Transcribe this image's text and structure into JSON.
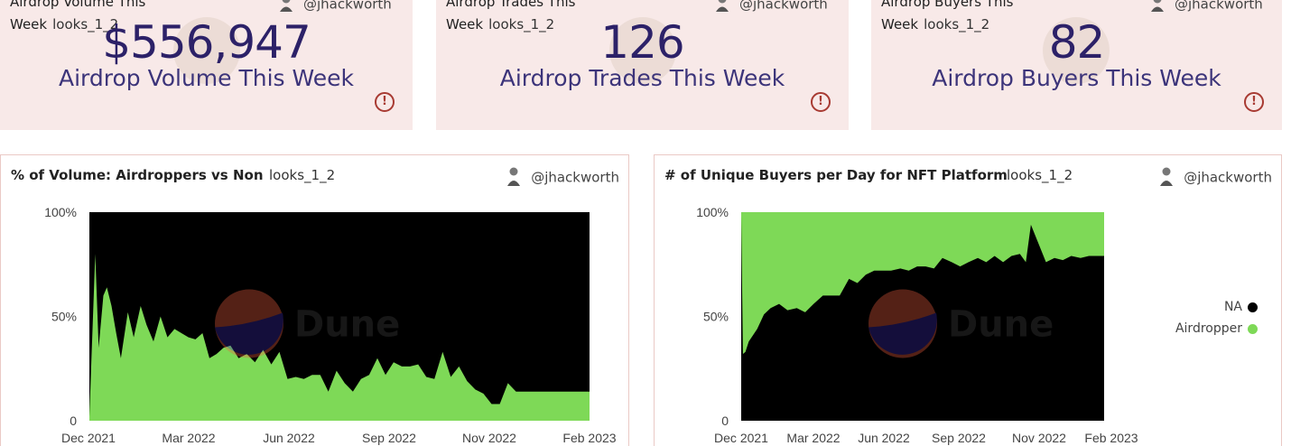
{
  "counters": [
    {
      "title": "Airdrop Volume This",
      "week": "Week",
      "query": "looks_1_2",
      "author": "@jhackworth",
      "value": "$556,947",
      "label": "Airdrop Volume This Week"
    },
    {
      "title": "Airdrop Trades This",
      "week": "Week",
      "query": "looks_1_2",
      "author": "@jhackworth",
      "value": "126",
      "label": "Airdrop Trades This Week"
    },
    {
      "title": "Airdrop Buyers This",
      "week": "Week",
      "query": "looks_1_2",
      "author": "@jhackworth",
      "value": "82",
      "label": "Airdrop Buyers This Week"
    }
  ],
  "panels": [
    {
      "title": "% of Volume: Airdroppers vs Non",
      "query": "looks_1_2",
      "author": "@jhackworth",
      "watermark": "Dune"
    },
    {
      "title": "# of Unique Buyers per Day for NFT Platform",
      "query": "looks_1_2",
      "author": "@jhackworth",
      "watermark": "Dune",
      "legend": [
        {
          "label": "NA",
          "color": "#000000"
        },
        {
          "label": "Airdropper",
          "color": "#7ed957"
        }
      ]
    }
  ],
  "chart_data": [
    {
      "type": "area",
      "stacked": true,
      "normalized": true,
      "title": "% of Volume: Airdroppers vs Non",
      "y_ticks": [
        "100%",
        "50%",
        "0"
      ],
      "x_ticks": [
        "Dec 2021",
        "Mar 2022",
        "Jun 2022",
        "Sep 2022",
        "Nov 2022",
        "Feb 2023"
      ],
      "x": [
        "2021-12-01",
        "2021-12-06",
        "2021-12-09",
        "2021-12-13",
        "2021-12-16",
        "2021-12-20",
        "2021-12-24",
        "2021-12-28",
        "2022-01-03",
        "2022-01-08",
        "2022-01-14",
        "2022-01-19",
        "2022-01-25",
        "2022-01-31",
        "2022-02-06",
        "2022-02-12",
        "2022-02-18",
        "2022-02-24",
        "2022-03-02",
        "2022-03-08",
        "2022-03-14",
        "2022-03-20",
        "2022-03-26",
        "2022-04-01",
        "2022-04-08",
        "2022-04-15",
        "2022-04-22",
        "2022-04-29",
        "2022-05-06",
        "2022-05-13",
        "2022-05-20",
        "2022-05-27",
        "2022-06-03",
        "2022-06-10",
        "2022-06-17",
        "2022-06-24",
        "2022-07-01",
        "2022-07-08",
        "2022-07-15",
        "2022-07-22",
        "2022-07-29",
        "2022-08-05",
        "2022-08-12",
        "2022-08-19",
        "2022-08-26",
        "2022-09-02",
        "2022-09-09",
        "2022-09-16",
        "2022-09-23",
        "2022-09-30",
        "2022-10-07",
        "2022-10-14",
        "2022-10-21",
        "2022-10-28",
        "2022-11-04",
        "2022-11-11",
        "2022-11-18",
        "2022-11-25",
        "2022-12-02",
        "2022-12-09",
        "2022-12-16",
        "2022-12-23",
        "2022-12-30",
        "2023-01-06",
        "2023-01-13",
        "2023-01-20",
        "2023-01-27",
        "2023-02-03"
      ],
      "series": [
        {
          "name": "Airdropper",
          "color": "#7ed957",
          "values": [
            0.02,
            0.8,
            0.35,
            0.6,
            0.64,
            0.55,
            0.42,
            0.3,
            0.52,
            0.4,
            0.55,
            0.46,
            0.38,
            0.5,
            0.4,
            0.44,
            0.42,
            0.4,
            0.39,
            0.42,
            0.3,
            0.32,
            0.35,
            0.36,
            0.3,
            0.32,
            0.28,
            0.34,
            0.27,
            0.33,
            0.2,
            0.21,
            0.2,
            0.22,
            0.22,
            0.14,
            0.24,
            0.18,
            0.14,
            0.2,
            0.22,
            0.3,
            0.22,
            0.28,
            0.26,
            0.26,
            0.27,
            0.21,
            0.2,
            0.33,
            0.21,
            0.26,
            0.19,
            0.15,
            0.13,
            0.08,
            0.08,
            0.18,
            0.14,
            0.14,
            0.14,
            0.14,
            0.14,
            0.14,
            0.14,
            0.14,
            0.14,
            0.14
          ]
        },
        {
          "name": "NA",
          "color": "#000000",
          "values": "remainder to 100%"
        }
      ],
      "ylim": [
        0,
        1
      ]
    },
    {
      "type": "area",
      "stacked": true,
      "normalized": true,
      "title": "# of Unique Buyers per Day for NFT Platform",
      "y_ticks": [
        "100%",
        "50%",
        "0"
      ],
      "x_ticks": [
        "Dec 2021",
        "Mar 2022",
        "Jun 2022",
        "Sep 2022",
        "Nov 2022",
        "Feb 2023"
      ],
      "x": [
        "2021-12-01",
        "2021-12-03",
        "2021-12-06",
        "2021-12-10",
        "2021-12-15",
        "2021-12-20",
        "2021-12-28",
        "2022-01-05",
        "2022-01-15",
        "2022-01-25",
        "2022-02-05",
        "2022-02-15",
        "2022-02-25",
        "2022-03-08",
        "2022-03-18",
        "2022-03-28",
        "2022-04-08",
        "2022-04-18",
        "2022-04-28",
        "2022-05-08",
        "2022-05-18",
        "2022-05-28",
        "2022-06-08",
        "2022-06-18",
        "2022-06-28",
        "2022-07-08",
        "2022-07-18",
        "2022-07-28",
        "2022-08-08",
        "2022-08-18",
        "2022-08-28",
        "2022-09-08",
        "2022-09-18",
        "2022-09-28",
        "2022-10-08",
        "2022-10-18",
        "2022-10-28",
        "2022-11-04",
        "2022-11-10",
        "2022-11-18",
        "2022-11-28",
        "2022-12-08",
        "2022-12-18",
        "2022-12-28",
        "2023-01-08",
        "2023-01-18",
        "2023-01-28",
        "2023-02-05"
      ],
      "series": [
        {
          "name": "NA",
          "color": "#000000",
          "values": [
            0.98,
            0.32,
            0.33,
            0.38,
            0.41,
            0.44,
            0.51,
            0.54,
            0.56,
            0.53,
            0.54,
            0.52,
            0.56,
            0.6,
            0.6,
            0.6,
            0.68,
            0.66,
            0.7,
            0.72,
            0.72,
            0.72,
            0.73,
            0.72,
            0.74,
            0.74,
            0.73,
            0.78,
            0.76,
            0.74,
            0.76,
            0.78,
            0.76,
            0.79,
            0.76,
            0.79,
            0.8,
            0.76,
            0.94,
            0.86,
            0.76,
            0.78,
            0.77,
            0.79,
            0.78,
            0.79,
            0.79,
            0.79
          ]
        },
        {
          "name": "Airdropper",
          "color": "#7ed957",
          "values": "remainder to 100%"
        }
      ],
      "ylim": [
        0,
        1
      ]
    }
  ]
}
